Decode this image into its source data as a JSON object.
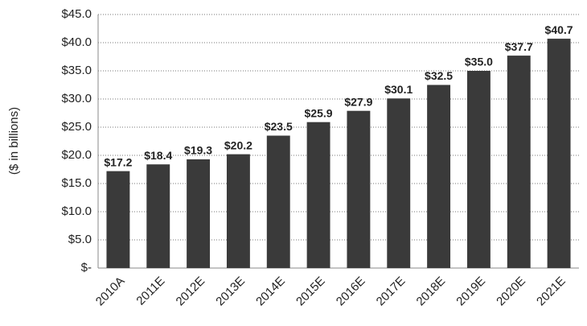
{
  "chart_data": {
    "type": "bar",
    "y_label": "($ in billions)",
    "categories": [
      "2010A",
      "2011E",
      "2012E",
      "2013E",
      "2014E",
      "2015E",
      "2016E",
      "2017E",
      "2018E",
      "2019E",
      "2020E",
      "2021E"
    ],
    "values": [
      17.2,
      18.4,
      19.3,
      20.2,
      23.5,
      25.9,
      27.9,
      30.1,
      32.5,
      35.0,
      37.7,
      40.7
    ],
    "value_labels": [
      "$17.2",
      "$18.4",
      "$19.3",
      "$20.2",
      "$23.5",
      "$25.9",
      "$27.9",
      "$30.1",
      "$32.5",
      "$35.0",
      "$37.7",
      "$40.7"
    ],
    "color": "#3a3a3a",
    "ylim": [
      0,
      45
    ],
    "yticks": [
      {
        "value": 0,
        "label": "$-"
      },
      {
        "value": 5,
        "label": "$5.0"
      },
      {
        "value": 10,
        "label": "$10.0"
      },
      {
        "value": 15,
        "label": "$15.0"
      },
      {
        "value": 20,
        "label": "$20.0"
      },
      {
        "value": 25,
        "label": "$25.0"
      },
      {
        "value": 30,
        "label": "$30.0"
      },
      {
        "value": 35,
        "label": "$35.0"
      },
      {
        "value": 40,
        "label": "$40.0"
      },
      {
        "value": 45,
        "label": "$45.0"
      }
    ],
    "grid": true
  }
}
